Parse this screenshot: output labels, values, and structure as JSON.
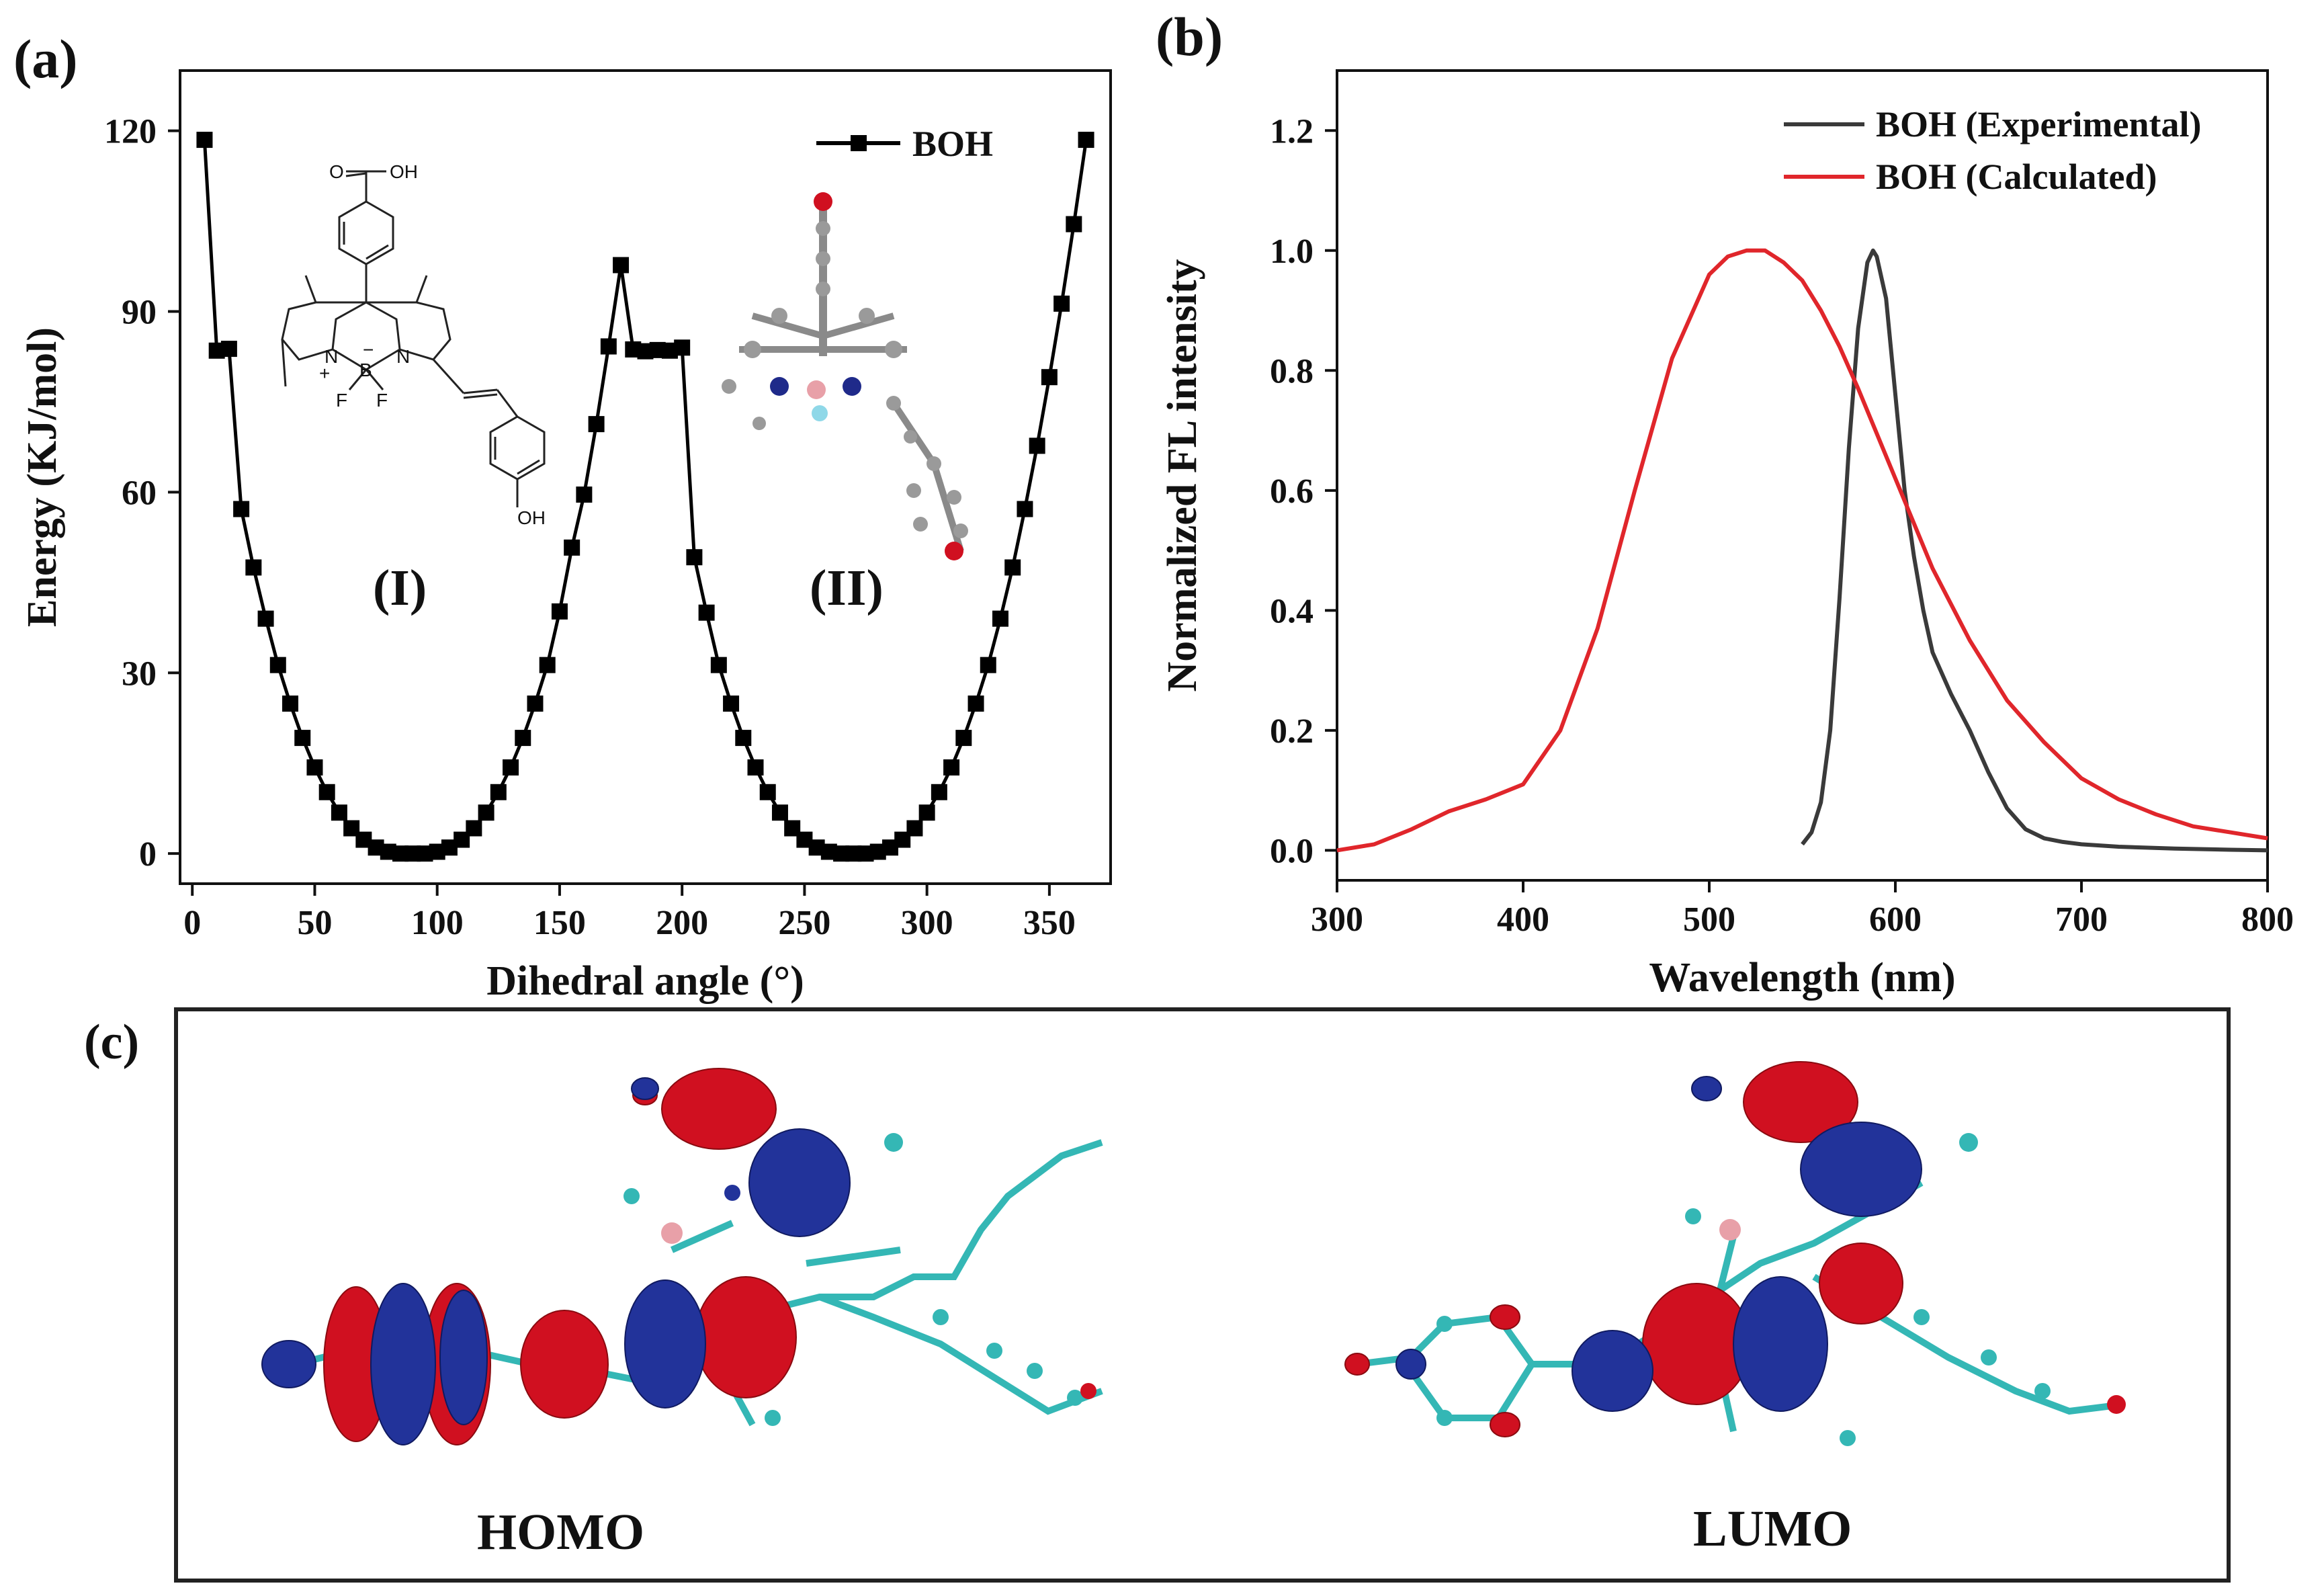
{
  "panel_labels": {
    "a": "(a)",
    "b": "(b)",
    "c": "(c)"
  },
  "chart_data": [
    {
      "type": "line",
      "panel": "(a)",
      "xlabel": "Dihedral angle (°)",
      "ylabel": "Energy (KJ/mol)",
      "xlim": [
        -5,
        375
      ],
      "ylim": [
        -5,
        130
      ],
      "xticks": [
        0,
        50,
        100,
        150,
        200,
        250,
        300,
        350
      ],
      "yticks": [
        0,
        30,
        60,
        90,
        120
      ],
      "legend_position": "top-right",
      "marker": "square",
      "series": [
        {
          "name": "BOH",
          "color": "#000000",
          "x": [
            5,
            10,
            15,
            20,
            25,
            30,
            35,
            40,
            45,
            50,
            55,
            60,
            65,
            70,
            75,
            80,
            85,
            90,
            95,
            100,
            105,
            110,
            115,
            120,
            125,
            130,
            135,
            140,
            145,
            150,
            155,
            160,
            165,
            170,
            175,
            180,
            185,
            190,
            195,
            200,
            205,
            210,
            215,
            220,
            225,
            230,
            235,
            240,
            245,
            250,
            255,
            260,
            265,
            270,
            275,
            280,
            285,
            290,
            295,
            300,
            305,
            310,
            315,
            320,
            325,
            330,
            335,
            340,
            345,
            350,
            355,
            360,
            365
          ],
          "y": [
            118.5,
            83.5,
            83.8,
            57.2,
            47.5,
            39.0,
            31.3,
            24.9,
            19.2,
            14.3,
            10.2,
            6.8,
            4.2,
            2.3,
            1.0,
            0.3,
            0.0,
            0.0,
            0.0,
            0.3,
            1.0,
            2.3,
            4.2,
            6.8,
            10.2,
            14.3,
            19.2,
            24.9,
            31.3,
            40.2,
            50.8,
            59.6,
            71.3,
            84.2,
            97.7,
            83.7,
            83.4,
            83.6,
            83.5,
            84.0,
            49.2,
            40.0,
            31.3,
            24.9,
            19.2,
            14.3,
            10.2,
            6.8,
            4.2,
            2.3,
            1.0,
            0.3,
            0.0,
            0.0,
            0.0,
            0.3,
            1.0,
            2.3,
            4.2,
            6.8,
            10.2,
            14.3,
            19.2,
            24.9,
            31.3,
            39.0,
            47.5,
            57.2,
            67.7,
            79.1,
            91.3,
            104.5,
            118.5
          ]
        }
      ],
      "annotations": [
        "(I)",
        "(II)"
      ],
      "inset_structure": {
        "labels": [
          "O",
          "OH",
          "N",
          "N",
          "B",
          "F",
          "F",
          "+",
          "−",
          "OH"
        ]
      }
    },
    {
      "type": "line",
      "panel": "(b)",
      "xlabel": "Wavelength (nm)",
      "ylabel": "Normalized FL intensity",
      "xlim": [
        300,
        800
      ],
      "ylim": [
        -0.05,
        1.3
      ],
      "xticks": [
        300,
        400,
        500,
        600,
        700,
        800
      ],
      "yticks": [
        0.0,
        0.2,
        0.4,
        0.6,
        0.8,
        1.0,
        1.2
      ],
      "ytick_labels": [
        "0.0",
        "0.2",
        "0.4",
        "0.6",
        "0.8",
        "1.0",
        "1.2"
      ],
      "legend_position": "top-right",
      "series": [
        {
          "name": "BOH (Experimental)",
          "color": "#3a3a3a",
          "x": [
            550,
            555,
            560,
            565,
            570,
            575,
            580,
            585,
            588,
            590,
            595,
            600,
            605,
            610,
            615,
            620,
            630,
            640,
            650,
            660,
            670,
            680,
            690,
            700,
            720,
            750,
            780,
            800
          ],
          "y": [
            0.01,
            0.03,
            0.08,
            0.2,
            0.42,
            0.67,
            0.87,
            0.98,
            1.0,
            0.99,
            0.92,
            0.76,
            0.6,
            0.49,
            0.4,
            0.33,
            0.26,
            0.2,
            0.13,
            0.07,
            0.035,
            0.02,
            0.014,
            0.01,
            0.006,
            0.003,
            0.001,
            0.0
          ]
        },
        {
          "name": "BOH (Calculated)",
          "color": "#e0262b",
          "x": [
            300,
            320,
            340,
            360,
            380,
            400,
            420,
            440,
            460,
            480,
            500,
            510,
            520,
            530,
            540,
            550,
            560,
            570,
            580,
            600,
            620,
            640,
            660,
            680,
            700,
            720,
            740,
            760,
            780,
            800
          ],
          "y": [
            0.0,
            0.01,
            0.035,
            0.065,
            0.085,
            0.11,
            0.2,
            0.37,
            0.6,
            0.82,
            0.96,
            0.99,
            1.0,
            1.0,
            0.98,
            0.95,
            0.9,
            0.84,
            0.77,
            0.62,
            0.47,
            0.35,
            0.25,
            0.18,
            0.12,
            0.085,
            0.06,
            0.04,
            0.03,
            0.02
          ]
        }
      ]
    }
  ],
  "orbital_labels": {
    "homo": "HOMO",
    "lumo": "LUMO"
  },
  "colors": {
    "lobe_positive": "#d01020",
    "lobe_negative": "#22339a",
    "bond": "#34b7b5",
    "boron": "#e8a0a8",
    "frame": "#222222"
  }
}
